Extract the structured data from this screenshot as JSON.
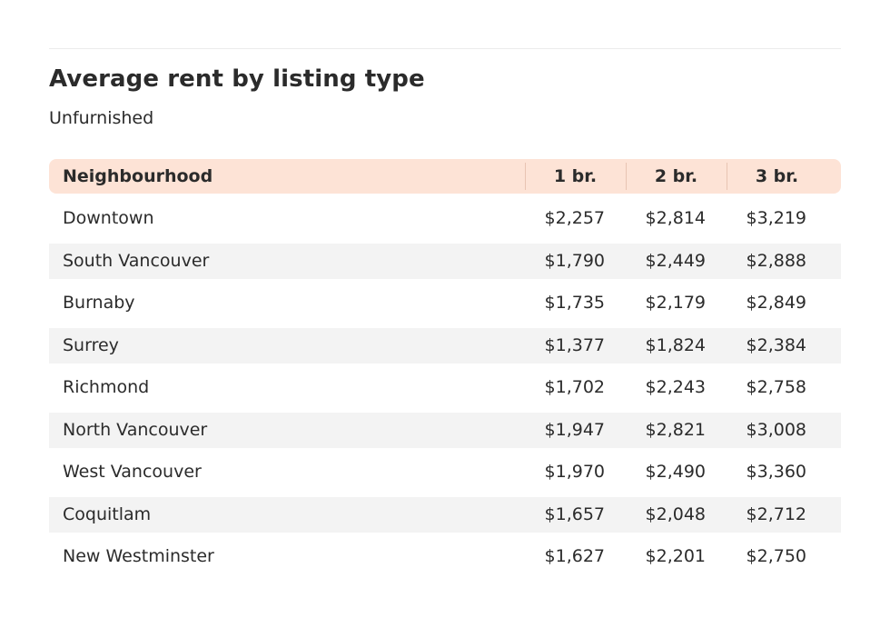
{
  "chart_data": {
    "type": "table",
    "title": "Average rent by listing type",
    "subtitle": "Unfurnished",
    "columns": [
      "Neighbourhood",
      "1 br.",
      "2 br.",
      "3 br."
    ],
    "rows": [
      {
        "name": "Downtown",
        "values": [
          "$2,257",
          "$2,814",
          "$3,219"
        ]
      },
      {
        "name": "South Vancouver",
        "values": [
          "$1,790",
          "$2,449",
          "$2,888"
        ]
      },
      {
        "name": "Burnaby",
        "values": [
          "$1,735",
          "$2,179",
          "$2,849"
        ]
      },
      {
        "name": "Surrey",
        "values": [
          "$1,377",
          "$1,824",
          "$2,384"
        ]
      },
      {
        "name": "Richmond",
        "values": [
          "$1,702",
          "$2,243",
          "$2,758"
        ]
      },
      {
        "name": "North Vancouver",
        "values": [
          "$1,947",
          "$2,821",
          "$3,008"
        ]
      },
      {
        "name": "West Vancouver",
        "values": [
          "$1,970",
          "$2,490",
          "$3,360"
        ]
      },
      {
        "name": "Coquitlam",
        "values": [
          "$1,657",
          "$2,048",
          "$2,712"
        ]
      },
      {
        "name": "New Westminster",
        "values": [
          "$1,627",
          "$2,201",
          "$2,750"
        ]
      }
    ],
    "colors": {
      "header_background": "#fde3d6",
      "alternate_row": "#f3f3f3",
      "text": "#2b2b2b"
    }
  }
}
